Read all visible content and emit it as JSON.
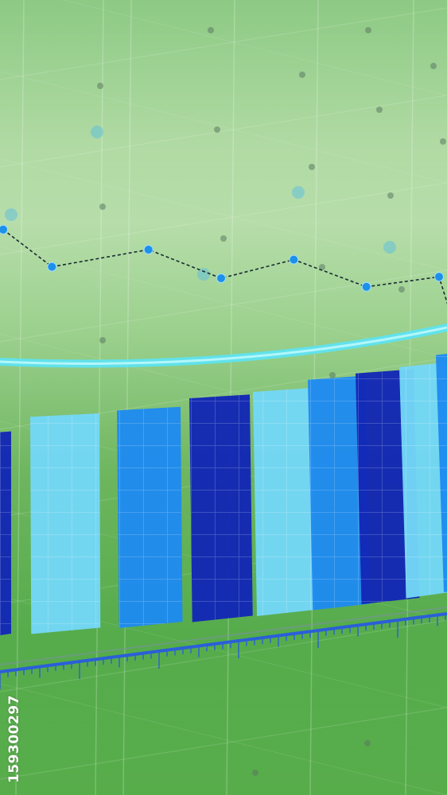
{
  "stock_id": "159300297",
  "colors": {
    "background_top": "#6dbb62",
    "background_bottom": "#4ea843",
    "arc": "#5fe3ef",
    "line": "#1e90e8",
    "axis": "#2a5fd8",
    "bar_palette": [
      "#1226b5",
      "#74d7f7",
      "#1e8af0"
    ]
  },
  "chart_data": [
    {
      "type": "line",
      "points": 7,
      "values": [
        84,
        58,
        70,
        50,
        63,
        44,
        51
      ],
      "style": "dashed",
      "markers": true
    },
    {
      "type": "bar",
      "bars": 9,
      "values": [
        74,
        78,
        78,
        80,
        80,
        82,
        82,
        82,
        84
      ],
      "colors": [
        "dark",
        "light",
        "mid",
        "dark",
        "light",
        "mid",
        "dark",
        "light",
        "mid"
      ],
      "grid": true
    }
  ]
}
